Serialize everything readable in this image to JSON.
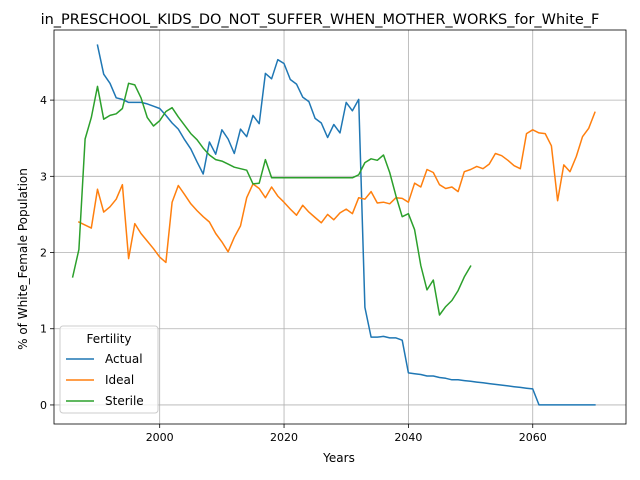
{
  "chart_data": {
    "type": "line",
    "title": "in_PRESCHOOL_KIDS_DO_NOT_SUFFER_WHEN_MOTHER_WORKS_for_White_F",
    "xlabel": "Years",
    "ylabel": "% of White_Female Population",
    "xlim": [
      1983,
      2075
    ],
    "ylim": [
      -0.25,
      4.92
    ],
    "xticks": [
      2000,
      2020,
      2040,
      2060
    ],
    "yticks": [
      0,
      1,
      2,
      3,
      4
    ],
    "grid": true,
    "legend": {
      "title": "Fertility",
      "placement": "lower-left"
    },
    "series": [
      {
        "name": "Actual",
        "color": "#1f77b4",
        "points": [
          [
            1990,
            4.72
          ],
          [
            1991,
            4.34
          ],
          [
            1992,
            4.22
          ],
          [
            1993,
            4.03
          ],
          [
            1994,
            4.01
          ],
          [
            1995,
            3.97
          ],
          [
            1996,
            3.97
          ],
          [
            1997,
            3.97
          ],
          [
            1998,
            3.95
          ],
          [
            1999,
            3.92
          ],
          [
            2000,
            3.89
          ],
          [
            2001,
            3.8
          ],
          [
            2002,
            3.7
          ],
          [
            2003,
            3.62
          ],
          [
            2004,
            3.48
          ],
          [
            2005,
            3.36
          ],
          [
            2006,
            3.19
          ],
          [
            2007,
            3.03
          ],
          [
            2008,
            3.45
          ],
          [
            2009,
            3.29
          ],
          [
            2010,
            3.61
          ],
          [
            2011,
            3.49
          ],
          [
            2012,
            3.3
          ],
          [
            2013,
            3.62
          ],
          [
            2014,
            3.52
          ],
          [
            2015,
            3.8
          ],
          [
            2016,
            3.69
          ],
          [
            2017,
            4.35
          ],
          [
            2018,
            4.28
          ],
          [
            2019,
            4.53
          ],
          [
            2020,
            4.48
          ],
          [
            2021,
            4.27
          ],
          [
            2022,
            4.21
          ],
          [
            2023,
            4.04
          ],
          [
            2024,
            3.98
          ],
          [
            2025,
            3.76
          ],
          [
            2026,
            3.7
          ],
          [
            2027,
            3.51
          ],
          [
            2028,
            3.68
          ],
          [
            2029,
            3.57
          ],
          [
            2030,
            3.97
          ],
          [
            2031,
            3.86
          ],
          [
            2032,
            4.01
          ],
          [
            2033,
            1.28
          ],
          [
            2034,
            0.89
          ],
          [
            2035,
            0.89
          ],
          [
            2036,
            0.9
          ],
          [
            2037,
            0.88
          ],
          [
            2038,
            0.88
          ],
          [
            2039,
            0.85
          ],
          [
            2040,
            0.42
          ],
          [
            2041,
            0.41
          ],
          [
            2042,
            0.4
          ],
          [
            2043,
            0.38
          ],
          [
            2044,
            0.38
          ],
          [
            2045,
            0.36
          ],
          [
            2046,
            0.35
          ],
          [
            2047,
            0.33
          ],
          [
            2048,
            0.33
          ],
          [
            2049,
            0.32
          ],
          [
            2050,
            0.31
          ],
          [
            2051,
            0.3
          ],
          [
            2052,
            0.29
          ],
          [
            2053,
            0.28
          ],
          [
            2054,
            0.27
          ],
          [
            2055,
            0.26
          ],
          [
            2056,
            0.25
          ],
          [
            2057,
            0.24
          ],
          [
            2058,
            0.23
          ],
          [
            2059,
            0.22
          ],
          [
            2060,
            0.21
          ],
          [
            2061,
            0.0
          ],
          [
            2062,
            0.0
          ],
          [
            2065,
            0.0
          ],
          [
            2070,
            0.0
          ]
        ]
      },
      {
        "name": "Ideal",
        "color": "#ff7f0e",
        "points": [
          [
            1987,
            2.4
          ],
          [
            1988,
            2.36
          ],
          [
            1989,
            2.32
          ],
          [
            1990,
            2.83
          ],
          [
            1991,
            2.53
          ],
          [
            1992,
            2.6
          ],
          [
            1993,
            2.7
          ],
          [
            1994,
            2.89
          ],
          [
            1995,
            1.92
          ],
          [
            1996,
            2.38
          ],
          [
            1997,
            2.25
          ],
          [
            1998,
            2.15
          ],
          [
            1999,
            2.05
          ],
          [
            2000,
            1.94
          ],
          [
            2001,
            1.87
          ],
          [
            2002,
            2.66
          ],
          [
            2003,
            2.88
          ],
          [
            2004,
            2.76
          ],
          [
            2005,
            2.64
          ],
          [
            2006,
            2.55
          ],
          [
            2007,
            2.47
          ],
          [
            2008,
            2.4
          ],
          [
            2009,
            2.25
          ],
          [
            2010,
            2.14
          ],
          [
            2011,
            2.01
          ],
          [
            2012,
            2.2
          ],
          [
            2013,
            2.35
          ],
          [
            2014,
            2.72
          ],
          [
            2015,
            2.9
          ],
          [
            2016,
            2.84
          ],
          [
            2017,
            2.72
          ],
          [
            2018,
            2.86
          ],
          [
            2019,
            2.74
          ],
          [
            2020,
            2.66
          ],
          [
            2021,
            2.57
          ],
          [
            2022,
            2.49
          ],
          [
            2023,
            2.62
          ],
          [
            2024,
            2.53
          ],
          [
            2025,
            2.46
          ],
          [
            2026,
            2.39
          ],
          [
            2027,
            2.5
          ],
          [
            2028,
            2.43
          ],
          [
            2029,
            2.52
          ],
          [
            2030,
            2.57
          ],
          [
            2031,
            2.51
          ],
          [
            2032,
            2.72
          ],
          [
            2033,
            2.7
          ],
          [
            2034,
            2.8
          ],
          [
            2035,
            2.65
          ],
          [
            2036,
            2.66
          ],
          [
            2037,
            2.64
          ],
          [
            2038,
            2.72
          ],
          [
            2039,
            2.71
          ],
          [
            2040,
            2.66
          ],
          [
            2041,
            2.91
          ],
          [
            2042,
            2.86
          ],
          [
            2043,
            3.09
          ],
          [
            2044,
            3.05
          ],
          [
            2045,
            2.89
          ],
          [
            2046,
            2.84
          ],
          [
            2047,
            2.86
          ],
          [
            2048,
            2.8
          ],
          [
            2049,
            3.06
          ],
          [
            2050,
            3.09
          ],
          [
            2051,
            3.13
          ],
          [
            2052,
            3.1
          ],
          [
            2053,
            3.16
          ],
          [
            2054,
            3.3
          ],
          [
            2055,
            3.27
          ],
          [
            2056,
            3.21
          ],
          [
            2057,
            3.14
          ],
          [
            2058,
            3.1
          ],
          [
            2059,
            3.56
          ],
          [
            2060,
            3.61
          ],
          [
            2061,
            3.57
          ],
          [
            2062,
            3.56
          ],
          [
            2063,
            3.4
          ],
          [
            2064,
            2.68
          ],
          [
            2065,
            3.15
          ],
          [
            2066,
            3.06
          ],
          [
            2067,
            3.26
          ],
          [
            2068,
            3.52
          ],
          [
            2069,
            3.63
          ],
          [
            2070,
            3.84
          ]
        ]
      },
      {
        "name": "Sterile",
        "color": "#2ca02c",
        "points": [
          [
            1986,
            1.68
          ],
          [
            1987,
            2.04
          ],
          [
            1988,
            3.49
          ],
          [
            1989,
            3.77
          ],
          [
            1990,
            4.18
          ],
          [
            1991,
            3.75
          ],
          [
            1992,
            3.8
          ],
          [
            1993,
            3.82
          ],
          [
            1994,
            3.89
          ],
          [
            1995,
            4.22
          ],
          [
            1996,
            4.2
          ],
          [
            1997,
            4.03
          ],
          [
            1998,
            3.77
          ],
          [
            1999,
            3.66
          ],
          [
            2000,
            3.73
          ],
          [
            2001,
            3.85
          ],
          [
            2002,
            3.9
          ],
          [
            2003,
            3.78
          ],
          [
            2004,
            3.67
          ],
          [
            2005,
            3.56
          ],
          [
            2006,
            3.48
          ],
          [
            2007,
            3.37
          ],
          [
            2008,
            3.28
          ],
          [
            2009,
            3.22
          ],
          [
            2010,
            3.2
          ],
          [
            2011,
            3.16
          ],
          [
            2012,
            3.12
          ],
          [
            2013,
            3.1
          ],
          [
            2014,
            3.08
          ],
          [
            2015,
            2.9
          ],
          [
            2016,
            2.91
          ],
          [
            2017,
            3.22
          ],
          [
            2018,
            2.98
          ],
          [
            2020,
            2.98
          ],
          [
            2025,
            2.98
          ],
          [
            2031,
            2.98
          ],
          [
            2032,
            3.02
          ],
          [
            2033,
            3.18
          ],
          [
            2034,
            3.23
          ],
          [
            2035,
            3.21
          ],
          [
            2036,
            3.28
          ],
          [
            2037,
            3.05
          ],
          [
            2038,
            2.74
          ],
          [
            2039,
            2.47
          ],
          [
            2040,
            2.51
          ],
          [
            2041,
            2.3
          ],
          [
            2042,
            1.83
          ],
          [
            2043,
            1.51
          ],
          [
            2044,
            1.64
          ],
          [
            2045,
            1.18
          ],
          [
            2046,
            1.29
          ],
          [
            2047,
            1.37
          ],
          [
            2048,
            1.5
          ],
          [
            2049,
            1.68
          ],
          [
            2050,
            1.82
          ]
        ]
      }
    ]
  }
}
